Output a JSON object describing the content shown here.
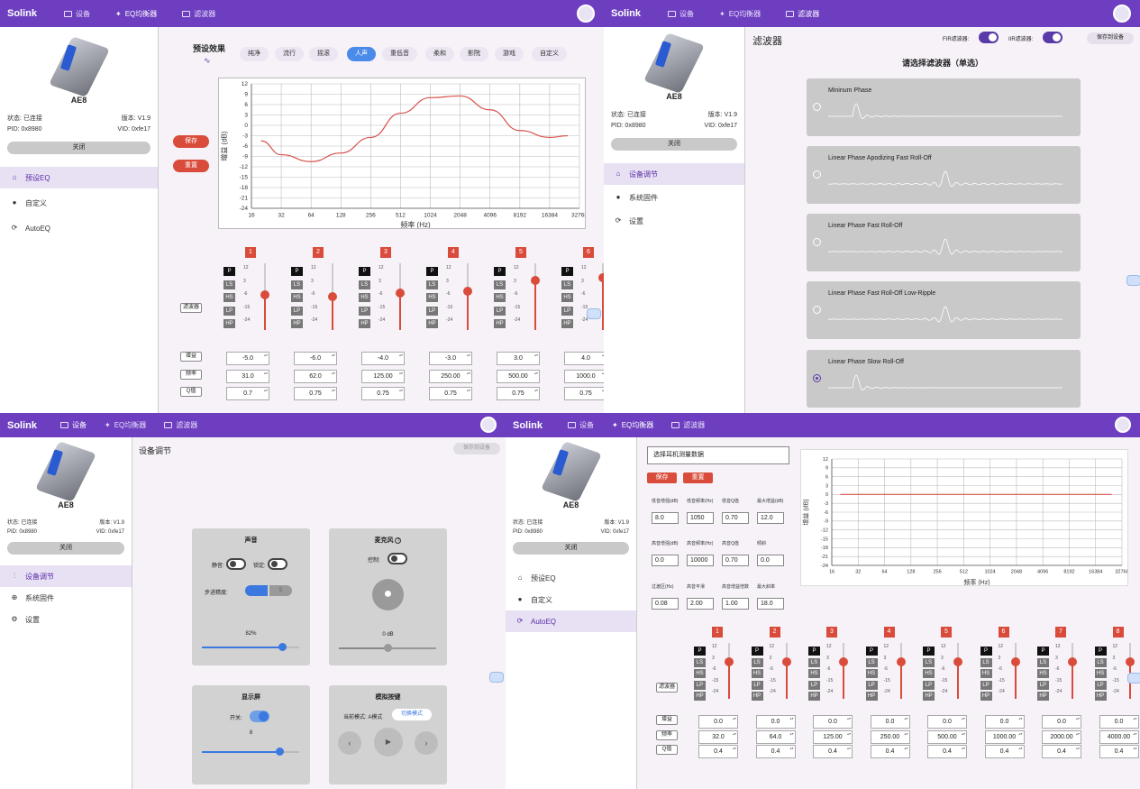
{
  "app": {
    "brand": "Solink",
    "nav_device": "设备",
    "nav_eq": "EQ均衡器",
    "nav_filter": "滤波器"
  },
  "device": {
    "name": "AE8",
    "status_label": "状态: 已连接",
    "version_label": "版本:",
    "version": "V1.9",
    "pid": "PID: 0x8980",
    "vid": "VID: 0xfe17",
    "close": "关闭"
  },
  "menu_eq": {
    "preset": "预设EQ",
    "custom": "自定义",
    "autoeq": "AutoEQ"
  },
  "menu_dev": {
    "device": "设备调节",
    "firmware": "系统固件",
    "settings": "设置"
  },
  "preset": {
    "title": "预设效果",
    "save": "保存",
    "reset": "重置",
    "chips": [
      "纯净",
      "流行",
      "摇滚",
      "人声",
      "重低音",
      "柔和",
      "影院",
      "游戏",
      "自定义"
    ],
    "active_chip": "人声"
  },
  "eq_chart_1": {
    "chart_data": {
      "type": "line",
      "ylabel": "增益 (dB)",
      "xlabel": "频率 (Hz)",
      "x_ticks": [
        "16",
        "32",
        "64",
        "128",
        "256",
        "512",
        "1024",
        "2048",
        "4096",
        "8192",
        "16384",
        "32768"
      ],
      "y_ticks": [
        "12",
        "9",
        "6",
        "3",
        "0",
        "-3",
        "-6",
        "-9",
        "-12",
        "-15",
        "-18",
        "-21",
        "-24"
      ],
      "ylim": [
        -24,
        12
      ],
      "x": [
        20,
        32,
        64,
        128,
        256,
        512,
        1024,
        2048,
        4096,
        8192,
        16384,
        25000
      ],
      "y": [
        -4.5,
        -8.5,
        -10.5,
        -8,
        -3.5,
        3.5,
        8,
        8.5,
        4.5,
        -1.5,
        -3.5,
        -3
      ],
      "color": "#d9534f"
    }
  },
  "labels": {
    "filter": "滤波器",
    "gain": "增益",
    "freq": "频率",
    "q": "Q值"
  },
  "filter_types": [
    "P",
    "LS",
    "HS",
    "LP",
    "HP"
  ],
  "scale_marks": [
    "12",
    "3",
    "-6",
    "-15",
    "-24"
  ],
  "bands_preset": [
    {
      "num": "1",
      "gain": "-5.0",
      "freq": "31.0",
      "q": "0.7",
      "level": -5
    },
    {
      "num": "2",
      "gain": "-6.0",
      "freq": "62.0",
      "q": "0.75",
      "level": -6
    },
    {
      "num": "3",
      "gain": "-4.0",
      "freq": "125.00",
      "q": "0.75",
      "level": -4
    },
    {
      "num": "4",
      "gain": "-3.0",
      "freq": "250.00",
      "q": "0.75",
      "level": -3
    },
    {
      "num": "5",
      "gain": "3.0",
      "freq": "500.00",
      "q": "0.75",
      "level": 3
    },
    {
      "num": "6",
      "gain": "4.0",
      "freq": "1000.0",
      "q": "0.75",
      "level": 4
    }
  ],
  "filter_page": {
    "title": "滤波器",
    "fir_label": "FIR滤波器:",
    "iir_label": "IIR滤波器:",
    "save_to_device": "保存到设备",
    "subtitle": "请选择滤波器（单选）",
    "options": [
      "Mininum Phase",
      "Linear Phase Apodizing Fast Roll-Off",
      "Linear Phase Fast Roll-Off",
      "Linear Phase Fast Roll-Off Low-Ripple",
      "Linear Phase Slow Roll-Off"
    ],
    "selected": "Linear Phase Slow Roll-Off"
  },
  "device_page": {
    "title": "设备调节",
    "save_to_device": "保存到设备",
    "sound": {
      "title": "声音",
      "mute": "静音:",
      "lock": "锁定:",
      "step": "步进精度:",
      "step_a": "1",
      "step_b": "5",
      "value": "82%",
      "level": 0.82
    },
    "mic": {
      "title": "麦克风",
      "help": "?",
      "control": "控制:",
      "value": "0 dB",
      "level": 0.5
    },
    "display": {
      "title": "显示屏",
      "switch": "开关:",
      "value": "8",
      "level": 0.8
    },
    "keys": {
      "title": "模拟按键",
      "mode": "当前模式: A模式",
      "switch_mode": "切换模式",
      "prev": "‹",
      "play": "▶",
      "next": "›"
    }
  },
  "autoeq": {
    "select_placeholder": "选择耳机测量数据",
    "save": "保存",
    "reset": "重置",
    "params": [
      {
        "label": "低音增强(dB)",
        "value": "8.0"
      },
      {
        "label": "低音频率(Hz)",
        "value": "1050"
      },
      {
        "label": "低音Q值",
        "value": "0.70"
      },
      {
        "label": "最大增益(dB)",
        "value": "12.0"
      },
      {
        "label": "高音增强(dB)",
        "value": "0.0"
      },
      {
        "label": "高音频率(Hz)",
        "value": "10000"
      },
      {
        "label": "高音Q值",
        "value": "0.70"
      },
      {
        "label": "倾斜",
        "value": "0.0"
      },
      {
        "label": "过渡区(Hz)",
        "value": "0.08"
      },
      {
        "label": "高音平滑",
        "value": "2.00"
      },
      {
        "label": "高音增益倍数",
        "value": "1.00"
      },
      {
        "label": "最大斜率",
        "value": "18.0"
      }
    ],
    "chart_data": {
      "type": "line",
      "ylabel": "增益 (dB)",
      "xlabel": "频率 (Hz)",
      "x_ticks": [
        "16",
        "32",
        "64",
        "128",
        "256",
        "512",
        "1024",
        "2048",
        "4096",
        "8192",
        "16384",
        "32768"
      ],
      "y_ticks": [
        "12",
        "9",
        "6",
        "3",
        "0",
        "-3",
        "-6",
        "-9",
        "-12",
        "-15",
        "-18",
        "-21",
        "-24"
      ],
      "ylim": [
        -24,
        12
      ],
      "x": [
        20,
        25000
      ],
      "y": [
        0,
        0
      ],
      "color": "#d9534f"
    },
    "bands": [
      {
        "num": "1",
        "gain": "0.0",
        "freq": "32.0",
        "q": "0.4"
      },
      {
        "num": "2",
        "gain": "0.0",
        "freq": "64.0",
        "q": "0.4"
      },
      {
        "num": "3",
        "gain": "0.0",
        "freq": "125.00",
        "q": "0.4"
      },
      {
        "num": "4",
        "gain": "0.0",
        "freq": "250.00",
        "q": "0.4"
      },
      {
        "num": "5",
        "gain": "0.0",
        "freq": "500.00",
        "q": "0.4"
      },
      {
        "num": "6",
        "gain": "0.0",
        "freq": "1000.00",
        "q": "0.4"
      },
      {
        "num": "7",
        "gain": "0.0",
        "freq": "2000.00",
        "q": "0.4"
      },
      {
        "num": "8",
        "gain": "0.0",
        "freq": "4000.00",
        "q": "0.4"
      }
    ]
  }
}
